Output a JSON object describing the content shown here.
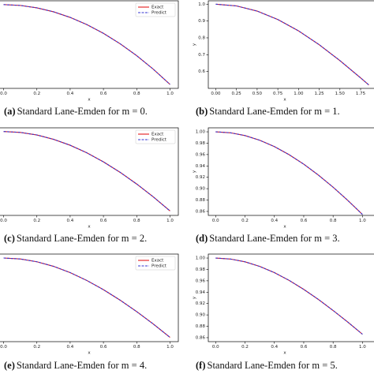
{
  "chart_data": [
    {
      "type": "line",
      "xlabel": "x",
      "caption_label": "(a)",
      "caption": "Standard Lane-Emden for m = 0.",
      "legend": "upper right",
      "x": [
        0,
        0.1,
        0.2,
        0.3,
        0.4,
        0.5,
        0.6,
        0.7,
        0.8,
        0.9,
        1.0
      ],
      "series": [
        {
          "name": "Exact",
          "color": "#e41a1c",
          "values": [
            1,
            0.9983,
            0.9933,
            0.985,
            0.9733,
            0.9583,
            0.94,
            0.9183,
            0.8933,
            0.865,
            0.8333
          ]
        },
        {
          "name": "Predict",
          "color": "#3535d0",
          "dash": true,
          "values": [
            1,
            0.9983,
            0.9933,
            0.985,
            0.9733,
            0.9583,
            0.94,
            0.9183,
            0.8933,
            0.865,
            0.8333
          ]
        }
      ],
      "xlim": [
        -0.05,
        1.05
      ],
      "ylim": [
        0.825,
        1.008
      ],
      "xticks": [
        {
          "value": 0,
          "label": "0.0"
        },
        0.2,
        0.4,
        0.6,
        0.8,
        {
          "value": 1,
          "label": "1.0"
        }
      ]
    },
    {
      "type": "line",
      "xlabel": "x",
      "ylabel": "y",
      "caption_label": "(b)",
      "caption": "Standard Lane-Emden for m = 1.",
      "x": [
        0,
        0.25,
        0.5,
        0.75,
        1.0,
        1.25,
        1.5,
        1.75,
        1.85
      ],
      "series": [
        {
          "color": "#e41a1c",
          "values": [
            1,
            0.9896,
            0.9589,
            0.9089,
            0.8415,
            0.7592,
            0.665,
            0.5623,
            0.5199
          ]
        },
        {
          "color": "#3535d0",
          "dash": true,
          "values": [
            1,
            0.9896,
            0.9589,
            0.9089,
            0.8415,
            0.7592,
            0.665,
            0.5623,
            0.5199
          ]
        }
      ],
      "xlim": [
        -0.09,
        1.95
      ],
      "ylim": [
        0.5,
        1.02
      ],
      "xticks": [
        {
          "value": 0,
          "label": "0.00"
        },
        0.25,
        {
          "value": 0.5,
          "label": "0.50"
        },
        0.75,
        {
          "value": 1,
          "label": "1.00"
        },
        1.25,
        {
          "value": 1.5,
          "label": "1.50"
        },
        1.75
      ],
      "yticks": [
        {
          "value": 0.6,
          "label": "0.6"
        },
        0.7,
        0.8,
        0.9,
        {
          "value": 1,
          "label": "1.0"
        }
      ]
    },
    {
      "type": "line",
      "xlabel": "x",
      "caption_label": "(c)",
      "caption": "Standard Lane-Emden for m = 2.",
      "legend": "upper right",
      "x": [
        0,
        0.1,
        0.2,
        0.3,
        0.4,
        0.5,
        0.6,
        0.7,
        0.8,
        0.9,
        1.0
      ],
      "series": [
        {
          "name": "Exact",
          "color": "#e41a1c",
          "values": [
            1,
            0.9983,
            0.9934,
            0.9851,
            0.9738,
            0.9594,
            0.9421,
            0.9222,
            0.8998,
            0.8752,
            0.8485
          ]
        },
        {
          "name": "Predict",
          "color": "#3535d0",
          "dash": true,
          "values": [
            1,
            0.9983,
            0.9934,
            0.9851,
            0.9738,
            0.9594,
            0.9421,
            0.9222,
            0.8998,
            0.8752,
            0.8485
          ]
        }
      ],
      "xlim": [
        -0.05,
        1.05
      ],
      "ylim": [
        0.84,
        1.007
      ],
      "xticks": [
        {
          "value": 0,
          "label": "0.0"
        },
        0.2,
        0.4,
        0.6,
        0.8,
        {
          "value": 1,
          "label": "1.0"
        }
      ]
    },
    {
      "type": "line",
      "xlabel": "x",
      "ylabel": "y",
      "caption_label": "(d)",
      "caption": "Standard Lane-Emden for m = 3.",
      "x": [
        0,
        0.1,
        0.2,
        0.3,
        0.4,
        0.5,
        0.6,
        0.7,
        0.8,
        0.9,
        1.0
      ],
      "series": [
        {
          "color": "#e41a1c",
          "values": [
            1,
            0.9983,
            0.9934,
            0.9852,
            0.974,
            0.9598,
            0.9431,
            0.9239,
            0.9026,
            0.8794,
            0.8546
          ]
        },
        {
          "color": "#3535d0",
          "dash": true,
          "values": [
            1,
            0.9983,
            0.9934,
            0.9852,
            0.974,
            0.9598,
            0.9431,
            0.9239,
            0.9026,
            0.8794,
            0.8546
          ]
        }
      ],
      "xlim": [
        -0.05,
        1.1
      ],
      "ylim": [
        0.853,
        1.007
      ],
      "xticks": [
        {
          "value": 0,
          "label": "0.0"
        },
        0.2,
        0.4,
        0.6,
        0.8,
        {
          "value": 1,
          "label": "1.0"
        }
      ],
      "yticks": [
        0.86,
        0.88,
        {
          "value": 0.9,
          "label": "0.90"
        },
        0.92,
        0.94,
        0.96,
        0.98,
        {
          "value": 1,
          "label": "1.00"
        }
      ]
    },
    {
      "type": "line",
      "xlabel": "x",
      "caption_label": "(e)",
      "caption": "Standard Lane-Emden for m = 4.",
      "legend": "upper right",
      "x": [
        0,
        0.1,
        0.2,
        0.3,
        0.4,
        0.5,
        0.6,
        0.7,
        0.8,
        0.9,
        1.0
      ],
      "series": [
        {
          "name": "Exact",
          "color": "#e41a1c",
          "values": [
            1,
            0.9983,
            0.9934,
            0.9853,
            0.9742,
            0.9603,
            0.944,
            0.9255,
            0.9051,
            0.8831,
            0.8596
          ]
        },
        {
          "name": "Predict",
          "color": "#3535d0",
          "dash": true,
          "values": [
            1,
            0.9983,
            0.9934,
            0.9853,
            0.9742,
            0.9603,
            0.944,
            0.9255,
            0.9051,
            0.8831,
            0.8596
          ]
        }
      ],
      "xlim": [
        -0.05,
        1.05
      ],
      "ylim": [
        0.852,
        1.007
      ],
      "xticks": [
        {
          "value": 0,
          "label": "0.0"
        },
        0.2,
        0.4,
        0.6,
        0.8,
        {
          "value": 1,
          "label": "1.0"
        }
      ]
    },
    {
      "type": "line",
      "xlabel": "x",
      "ylabel": "y",
      "caption_label": "(f)",
      "caption": "Standard Lane-Emden for m = 5.",
      "x": [
        0,
        0.1,
        0.2,
        0.3,
        0.4,
        0.5,
        0.6,
        0.7,
        0.8,
        0.9,
        1.0
      ],
      "series": [
        {
          "color": "#e41a1c",
          "values": [
            1,
            0.9983,
            0.9934,
            0.9853,
            0.9744,
            0.9608,
            0.9449,
            0.9272,
            0.9078,
            0.8874,
            0.866
          ]
        },
        {
          "color": "#3535d0",
          "dash": true,
          "values": [
            1,
            0.9983,
            0.9934,
            0.9853,
            0.9744,
            0.9608,
            0.9449,
            0.9272,
            0.9078,
            0.8874,
            0.866
          ]
        }
      ],
      "xlim": [
        -0.05,
        1.1
      ],
      "ylim": [
        0.853,
        1.007
      ],
      "xticks": [
        {
          "value": 0,
          "label": "0.0"
        },
        0.2,
        0.4,
        0.6,
        0.8,
        {
          "value": 1,
          "label": "1.0"
        }
      ],
      "yticks": [
        0.86,
        0.88,
        {
          "value": 0.9,
          "label": "0.90"
        },
        0.92,
        0.94,
        0.96,
        0.98,
        {
          "value": 1,
          "label": "1.00"
        }
      ]
    }
  ]
}
